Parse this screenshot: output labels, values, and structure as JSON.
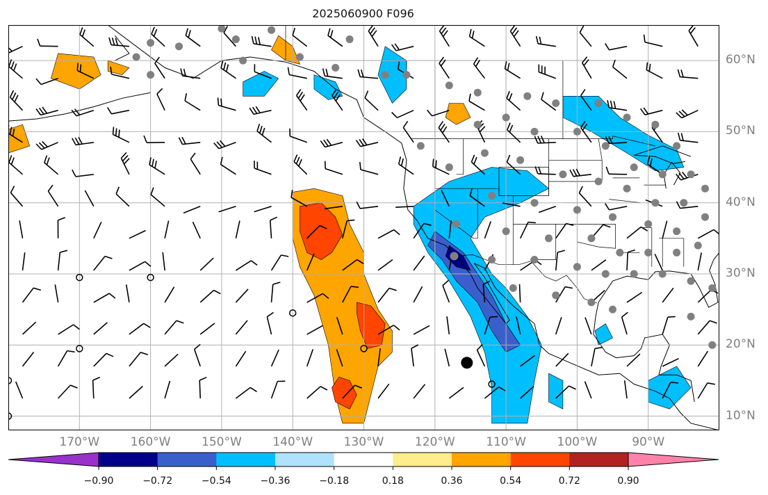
{
  "title": "2025060900 F096",
  "map": {
    "extent_lon": [
      -180,
      -80
    ],
    "extent_lat": [
      8,
      65
    ],
    "gridline_color": "#b0b0b0",
    "lon_ticks": [
      {
        "lon": -170,
        "label": "170°W"
      },
      {
        "lon": -160,
        "label": "160°W"
      },
      {
        "lon": -150,
        "label": "150°W"
      },
      {
        "lon": -140,
        "label": "140°W"
      },
      {
        "lon": -130,
        "label": "130°W"
      },
      {
        "lon": -120,
        "label": "120°W"
      },
      {
        "lon": -110,
        "label": "110°W"
      },
      {
        "lon": -100,
        "label": "100°W"
      },
      {
        "lon": -90,
        "label": "90°W"
      }
    ],
    "lat_ticks": [
      {
        "lat": 60,
        "label": "60°N"
      },
      {
        "lat": 50,
        "label": "50°N"
      },
      {
        "lat": 40,
        "label": "40°N"
      },
      {
        "lat": 30,
        "label": "30°N"
      },
      {
        "lat": 20,
        "label": "20°N"
      },
      {
        "lat": 10,
        "label": "10°N"
      }
    ],
    "marker_colors": {
      "station": "#808080",
      "calm": "#000000"
    }
  },
  "colorbar": {
    "colors": [
      "#9932cc",
      "#00008b",
      "#3a5fcd",
      "#00bfff",
      "#b0e2ff",
      "#ffffff",
      "#ffec8b",
      "#ffa500",
      "#ff4500",
      "#b22222",
      "#ff82ab"
    ],
    "tick_labels": [
      "−0.90",
      "−0.72",
      "−0.54",
      "−0.36",
      "−0.18",
      "0.18",
      "0.36",
      "0.54",
      "0.72",
      "0.90"
    ],
    "bounds": [
      -0.9,
      -0.72,
      -0.54,
      -0.36,
      -0.18,
      0.18,
      0.36,
      0.54,
      0.72,
      0.9
    ]
  }
}
